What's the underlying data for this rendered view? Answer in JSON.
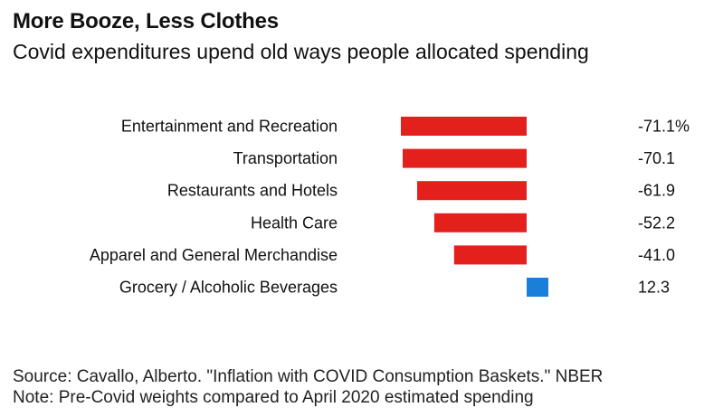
{
  "header": {
    "title": "More Booze, Less Clothes",
    "subtitle": "Covid expenditures upend old ways people allocated spending"
  },
  "chart_data": {
    "type": "bar",
    "orientation": "horizontal",
    "categories": [
      "Entertainment and Recreation",
      "Transportation",
      "Restaurants and Hotels",
      "Health Care",
      "Apparel and General Merchandise",
      "Grocery / Alcoholic Beverages"
    ],
    "values": [
      -71.1,
      -70.1,
      -61.9,
      -52.2,
      -41.0,
      12.3
    ],
    "value_labels": [
      "-71.1%",
      "-70.1",
      "-61.9",
      "-52.2",
      "-41.0",
      "12.3"
    ],
    "colors": {
      "negative": "#e3201b",
      "positive": "#1a7fd9"
    },
    "xlim": [
      -75,
      15
    ],
    "grid": false,
    "legend": "none"
  },
  "footer": {
    "source": "Source: Cavallo, Alberto. \"Inflation with COVID Consumption Baskets.\" NBER",
    "note": "Note: Pre-Covid weights compared to April 2020 estimated spending"
  }
}
